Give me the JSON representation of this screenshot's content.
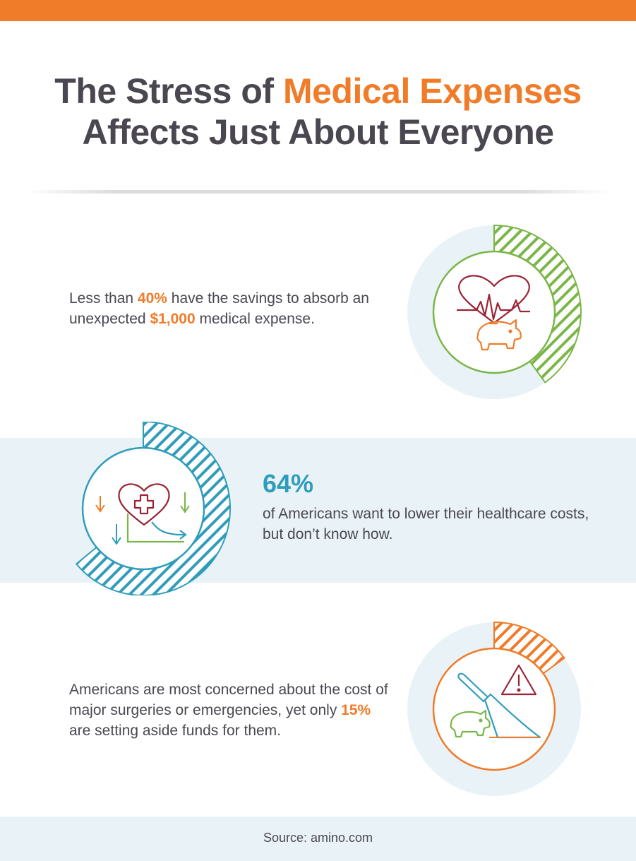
{
  "title": {
    "part1": "The Stress of ",
    "accent": "Medical Expenses",
    "line2": "Affects Just About Everyone"
  },
  "stats": [
    {
      "pre": "Less than ",
      "pct": "40%",
      "mid": " have the savings to absorb an unexpected ",
      "amount": "$1,000",
      "post": " medical expense.",
      "ring_percent": 40,
      "ring_color": "#7ab648"
    },
    {
      "big": "64%",
      "text": "of Americans want to lower their healthcare costs, but don’t know how.",
      "ring_percent": 64,
      "ring_color": "#2f9cbc"
    },
    {
      "pre": "Americans are most concerned about the cost of major surgeries or emergencies, yet only ",
      "pct": "15%",
      "post": " are setting aside funds for them.",
      "ring_percent": 15,
      "ring_color": "#f07b29"
    }
  ],
  "source": "Source: amino.com",
  "colors": {
    "orange": "#f07b29",
    "green": "#7ab648",
    "blue": "#2f9cbc",
    "maroon": "#9b2335",
    "text": "#4a4750",
    "pale": "#e9f3f7"
  },
  "icons": [
    "heart-pulse-icon",
    "piggy-bank-icon",
    "heart-cross-icon",
    "down-arrows-icon",
    "scalpel-icon",
    "warning-icon"
  ]
}
